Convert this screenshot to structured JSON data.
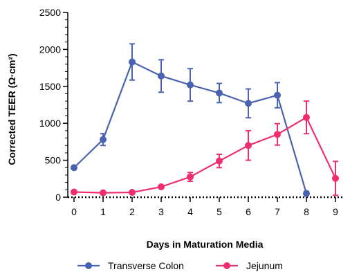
{
  "chart_data": {
    "type": "line",
    "xlabel": "Days in Maturation Media",
    "ylabel": "Corrected TEER (Ω·cm²)",
    "xlim": [
      0,
      9
    ],
    "ylim": [
      0,
      2500
    ],
    "x_ticks": [
      0,
      1,
      2,
      3,
      4,
      5,
      6,
      7,
      8,
      9
    ],
    "y_ticks": [
      0,
      500,
      1000,
      1500,
      2000,
      2500
    ],
    "grid": false,
    "legend_position": "bottom",
    "series": [
      {
        "name": "Transverse Colon",
        "color": "#4a63b0",
        "x": [
          0,
          1,
          2,
          3,
          4,
          5,
          6,
          7,
          8
        ],
        "y": [
          400,
          780,
          1830,
          1640,
          1520,
          1410,
          1270,
          1380,
          50
        ],
        "error": [
          0,
          80,
          245,
          220,
          220,
          130,
          195,
          170,
          30
        ]
      },
      {
        "name": "Jejunum",
        "color": "#ee2e6e",
        "x": [
          0,
          1,
          2,
          3,
          4,
          5,
          6,
          7,
          8,
          9
        ],
        "y": [
          70,
          60,
          65,
          140,
          275,
          490,
          700,
          850,
          1080,
          255
        ],
        "error": [
          0,
          0,
          0,
          0,
          60,
          90,
          200,
          145,
          220,
          230
        ]
      }
    ]
  }
}
